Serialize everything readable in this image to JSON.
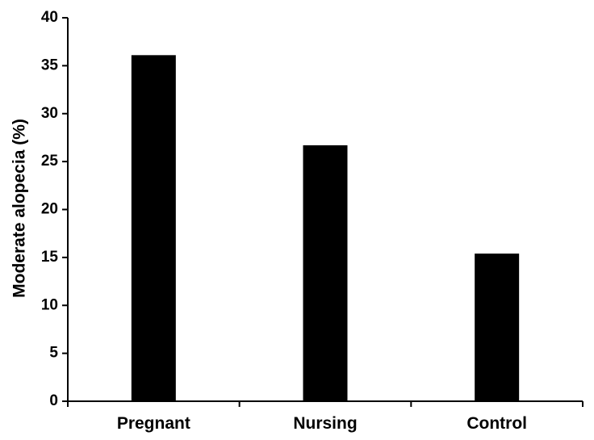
{
  "chart_data": {
    "type": "bar",
    "categories": [
      "Pregnant",
      "Nursing",
      "Control"
    ],
    "values": [
      36.1,
      26.7,
      15.4
    ],
    "title": "",
    "xlabel": "",
    "ylabel": "Moderate alopecia (%)",
    "ylim": [
      0,
      40
    ],
    "yticks": [
      0,
      5,
      10,
      15,
      20,
      25,
      30,
      35,
      40
    ],
    "grid": false,
    "legend": "none",
    "bar_color": "#000000",
    "axis_color": "#000000"
  }
}
